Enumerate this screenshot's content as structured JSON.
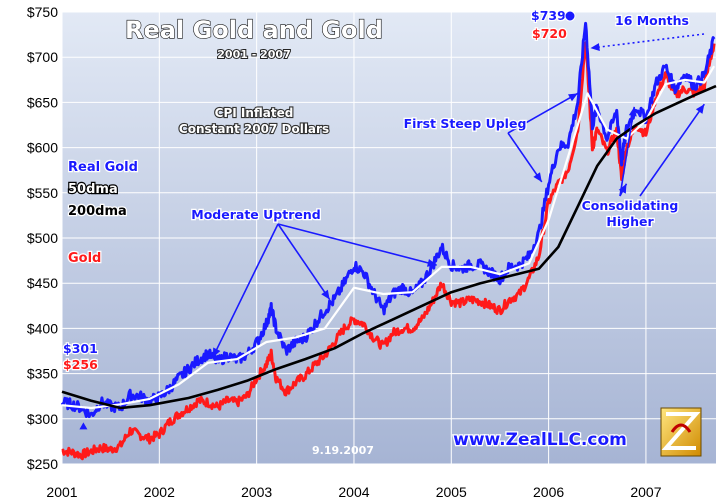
{
  "chart_data": {
    "type": "line",
    "title": "Real Gold and Gold",
    "subtitle": "2001 - 2007",
    "note_line1": "CPI Inflated",
    "note_line2": "Constant 2007 Dollars",
    "x_ticks": [
      "2001",
      "2002",
      "2003",
      "2004",
      "2005",
      "2006",
      "2007"
    ],
    "y_ticks": [
      "$250",
      "$300",
      "$350",
      "$400",
      "$450",
      "$500",
      "$550",
      "$600",
      "$650",
      "$700",
      "$750"
    ],
    "ylim": [
      250,
      750
    ],
    "xlim": [
      2001.0,
      2007.72
    ],
    "grid": true,
    "legend": [
      "Real Gold",
      "50dma",
      "200dma",
      "Gold"
    ],
    "colors": {
      "real_gold": "#1a1aff",
      "dma50": "#ffffff",
      "dma200": "#000000",
      "gold": "#ff1a1a",
      "plot_bg_top": "#d8e2f2",
      "plot_bg_bottom": "#a9b6d6",
      "annotation": "#1a1aff"
    },
    "series": [
      {
        "name": "Real Gold",
        "points": [
          [
            2001.0,
            318
          ],
          [
            2001.1,
            316
          ],
          [
            2001.2,
            312
          ],
          [
            2001.3,
            304
          ],
          [
            2001.4,
            318
          ],
          [
            2001.5,
            314
          ],
          [
            2001.6,
            312
          ],
          [
            2001.7,
            326
          ],
          [
            2001.8,
            325
          ],
          [
            2001.9,
            320
          ],
          [
            2002.0,
            324
          ],
          [
            2002.1,
            333
          ],
          [
            2002.2,
            345
          ],
          [
            2002.3,
            355
          ],
          [
            2002.4,
            365
          ],
          [
            2002.5,
            372
          ],
          [
            2002.6,
            363
          ],
          [
            2002.7,
            370
          ],
          [
            2002.8,
            365
          ],
          [
            2002.9,
            371
          ],
          [
            2003.0,
            384
          ],
          [
            2003.1,
            405
          ],
          [
            2003.15,
            422
          ],
          [
            2003.2,
            400
          ],
          [
            2003.3,
            375
          ],
          [
            2003.4,
            385
          ],
          [
            2003.5,
            390
          ],
          [
            2003.6,
            405
          ],
          [
            2003.7,
            420
          ],
          [
            2003.8,
            432
          ],
          [
            2003.9,
            450
          ],
          [
            2004.0,
            470
          ],
          [
            2004.1,
            462
          ],
          [
            2004.2,
            440
          ],
          [
            2004.3,
            420
          ],
          [
            2004.4,
            438
          ],
          [
            2004.5,
            445
          ],
          [
            2004.6,
            438
          ],
          [
            2004.7,
            450
          ],
          [
            2004.8,
            468
          ],
          [
            2004.9,
            490
          ],
          [
            2005.0,
            470
          ],
          [
            2005.1,
            466
          ],
          [
            2005.2,
            470
          ],
          [
            2005.3,
            470
          ],
          [
            2005.4,
            462
          ],
          [
            2005.5,
            455
          ],
          [
            2005.6,
            468
          ],
          [
            2005.7,
            470
          ],
          [
            2005.8,
            480
          ],
          [
            2005.9,
            505
          ],
          [
            2006.0,
            560
          ],
          [
            2006.1,
            600
          ],
          [
            2006.2,
            605
          ],
          [
            2006.3,
            650
          ],
          [
            2006.38,
            739
          ],
          [
            2006.45,
            625
          ],
          [
            2006.5,
            645
          ],
          [
            2006.6,
            610
          ],
          [
            2006.7,
            640
          ],
          [
            2006.75,
            585
          ],
          [
            2006.8,
            620
          ],
          [
            2006.9,
            645
          ],
          [
            2007.0,
            632
          ],
          [
            2007.1,
            670
          ],
          [
            2007.2,
            690
          ],
          [
            2007.3,
            665
          ],
          [
            2007.4,
            682
          ],
          [
            2007.5,
            668
          ],
          [
            2007.6,
            680
          ],
          [
            2007.7,
            720
          ]
        ]
      },
      {
        "name": "50dma",
        "points": [
          [
            2001.0,
            315
          ],
          [
            2001.3,
            312
          ],
          [
            2001.6,
            316
          ],
          [
            2001.9,
            322
          ],
          [
            2002.2,
            338
          ],
          [
            2002.5,
            362
          ],
          [
            2002.8,
            366
          ],
          [
            2003.1,
            385
          ],
          [
            2003.4,
            390
          ],
          [
            2003.7,
            400
          ],
          [
            2004.0,
            445
          ],
          [
            2004.3,
            438
          ],
          [
            2004.6,
            440
          ],
          [
            2004.9,
            468
          ],
          [
            2005.2,
            468
          ],
          [
            2005.5,
            460
          ],
          [
            2005.8,
            472
          ],
          [
            2006.0,
            520
          ],
          [
            2006.2,
            590
          ],
          [
            2006.4,
            660
          ],
          [
            2006.6,
            620
          ],
          [
            2006.8,
            610
          ],
          [
            2007.0,
            630
          ],
          [
            2007.2,
            670
          ],
          [
            2007.4,
            675
          ],
          [
            2007.6,
            672
          ],
          [
            2007.7,
            690
          ]
        ]
      },
      {
        "name": "200dma",
        "points": [
          [
            2001.0,
            330
          ],
          [
            2001.3,
            320
          ],
          [
            2001.6,
            312
          ],
          [
            2001.9,
            315
          ],
          [
            2002.3,
            323
          ],
          [
            2002.6,
            332
          ],
          [
            2002.9,
            342
          ],
          [
            2003.2,
            355
          ],
          [
            2003.5,
            366
          ],
          [
            2003.8,
            378
          ],
          [
            2004.1,
            395
          ],
          [
            2004.4,
            410
          ],
          [
            2004.7,
            425
          ],
          [
            2005.0,
            440
          ],
          [
            2005.3,
            450
          ],
          [
            2005.6,
            458
          ],
          [
            2005.9,
            466
          ],
          [
            2006.1,
            490
          ],
          [
            2006.3,
            535
          ],
          [
            2006.5,
            580
          ],
          [
            2006.7,
            610
          ],
          [
            2006.9,
            625
          ],
          [
            2007.1,
            638
          ],
          [
            2007.3,
            648
          ],
          [
            2007.5,
            658
          ],
          [
            2007.72,
            668
          ]
        ]
      },
      {
        "name": "Gold",
        "points": [
          [
            2001.0,
            265
          ],
          [
            2001.1,
            263
          ],
          [
            2001.2,
            260
          ],
          [
            2001.3,
            264
          ],
          [
            2001.4,
            268
          ],
          [
            2001.5,
            266
          ],
          [
            2001.6,
            270
          ],
          [
            2001.7,
            287
          ],
          [
            2001.8,
            282
          ],
          [
            2001.9,
            278
          ],
          [
            2002.0,
            283
          ],
          [
            2002.1,
            296
          ],
          [
            2002.2,
            305
          ],
          [
            2002.3,
            312
          ],
          [
            2002.4,
            320
          ],
          [
            2002.5,
            318
          ],
          [
            2002.6,
            313
          ],
          [
            2002.7,
            320
          ],
          [
            2002.8,
            318
          ],
          [
            2002.9,
            325
          ],
          [
            2003.0,
            345
          ],
          [
            2003.1,
            360
          ],
          [
            2003.15,
            372
          ],
          [
            2003.2,
            345
          ],
          [
            2003.3,
            330
          ],
          [
            2003.4,
            340
          ],
          [
            2003.5,
            348
          ],
          [
            2003.6,
            360
          ],
          [
            2003.7,
            370
          ],
          [
            2003.8,
            385
          ],
          [
            2003.9,
            400
          ],
          [
            2004.0,
            410
          ],
          [
            2004.1,
            405
          ],
          [
            2004.2,
            390
          ],
          [
            2004.3,
            380
          ],
          [
            2004.4,
            395
          ],
          [
            2004.5,
            400
          ],
          [
            2004.6,
            400
          ],
          [
            2004.7,
            410
          ],
          [
            2004.8,
            428
          ],
          [
            2004.9,
            450
          ],
          [
            2005.0,
            430
          ],
          [
            2005.1,
            428
          ],
          [
            2005.2,
            432
          ],
          [
            2005.3,
            430
          ],
          [
            2005.4,
            425
          ],
          [
            2005.5,
            420
          ],
          [
            2005.6,
            432
          ],
          [
            2005.7,
            438
          ],
          [
            2005.8,
            455
          ],
          [
            2005.9,
            480
          ],
          [
            2006.0,
            540
          ],
          [
            2006.1,
            560
          ],
          [
            2006.2,
            575
          ],
          [
            2006.3,
            620
          ],
          [
            2006.38,
            720
          ],
          [
            2006.45,
            600
          ],
          [
            2006.5,
            620
          ],
          [
            2006.6,
            595
          ],
          [
            2006.7,
            620
          ],
          [
            2006.75,
            565
          ],
          [
            2006.8,
            600
          ],
          [
            2006.9,
            625
          ],
          [
            2007.0,
            615
          ],
          [
            2007.1,
            655
          ],
          [
            2007.2,
            680
          ],
          [
            2007.3,
            658
          ],
          [
            2007.4,
            665
          ],
          [
            2007.5,
            660
          ],
          [
            2007.6,
            668
          ],
          [
            2007.7,
            715
          ]
        ]
      }
    ],
    "annotations": {
      "moderate_uptrend": "Moderate Uptrend",
      "first_steep_upleg": "First Steep Upleg",
      "consolidating_line1": "Consolidating",
      "consolidating_line2": "Higher",
      "sixteen_months": "16 Months",
      "real_peak": "$739",
      "nominal_peak": "$720",
      "real_start": "$301",
      "nominal_start": "$256",
      "date_stamp": "9.19.2007",
      "url": "www.ZealLLC.com",
      "logo_text": "ZEAL"
    }
  }
}
